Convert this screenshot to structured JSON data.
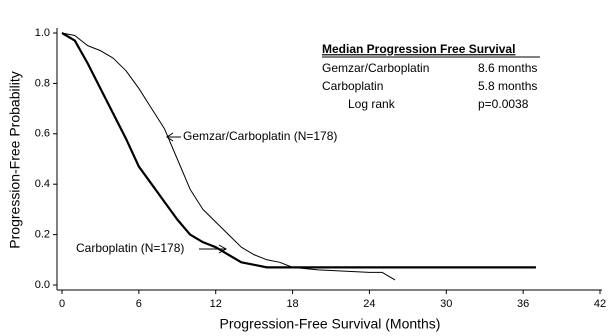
{
  "chart_data": {
    "type": "line",
    "x_label": "Progression-Free Survival (Months)",
    "y_label": "Progression-Free Probability",
    "xlim": [
      0,
      42
    ],
    "xticks": [
      0,
      6,
      12,
      18,
      24,
      30,
      36,
      42
    ],
    "ylim": [
      0,
      1
    ],
    "yticks": [
      {
        "value": 0,
        "label": "0.0"
      },
      0.2,
      0.4,
      0.6,
      0.8,
      {
        "value": 1,
        "label": "1.0"
      }
    ],
    "series": [
      {
        "name": "Gemzar/Carboplatin (N=178)",
        "color": "#000000",
        "width": 1,
        "x": [
          0,
          1,
          2,
          3,
          4,
          5,
          6,
          7,
          8,
          9,
          10,
          11,
          12,
          13,
          14,
          15,
          16,
          17,
          18,
          20,
          22,
          24,
          25,
          26
        ],
        "values": [
          1,
          0.99,
          0.95,
          0.93,
          0.9,
          0.85,
          0.78,
          0.7,
          0.62,
          0.5,
          0.38,
          0.3,
          0.25,
          0.2,
          0.15,
          0.12,
          0.1,
          0.09,
          0.07,
          0.06,
          0.055,
          0.05,
          0.05,
          0.02
        ]
      },
      {
        "name": "Carboplatin (N=178)",
        "color": "#000000",
        "width": 2.2,
        "x": [
          0,
          1,
          2,
          3,
          4,
          5,
          6,
          7,
          8,
          9,
          10,
          11,
          12,
          13,
          14,
          15,
          16,
          18,
          37
        ],
        "values": [
          1,
          0.97,
          0.88,
          0.78,
          0.68,
          0.58,
          0.47,
          0.4,
          0.33,
          0.26,
          0.2,
          0.17,
          0.15,
          0.12,
          0.09,
          0.08,
          0.07,
          0.07,
          0.07
        ]
      }
    ],
    "annotation_table": {
      "title": "Median Progression Free Survival",
      "rows": [
        [
          "Gemzar/Carboplatin",
          "8.6 months"
        ],
        [
          "Carboplatin",
          "5.8 months"
        ],
        [
          "Log rank",
          "p=0.0038"
        ]
      ]
    }
  }
}
